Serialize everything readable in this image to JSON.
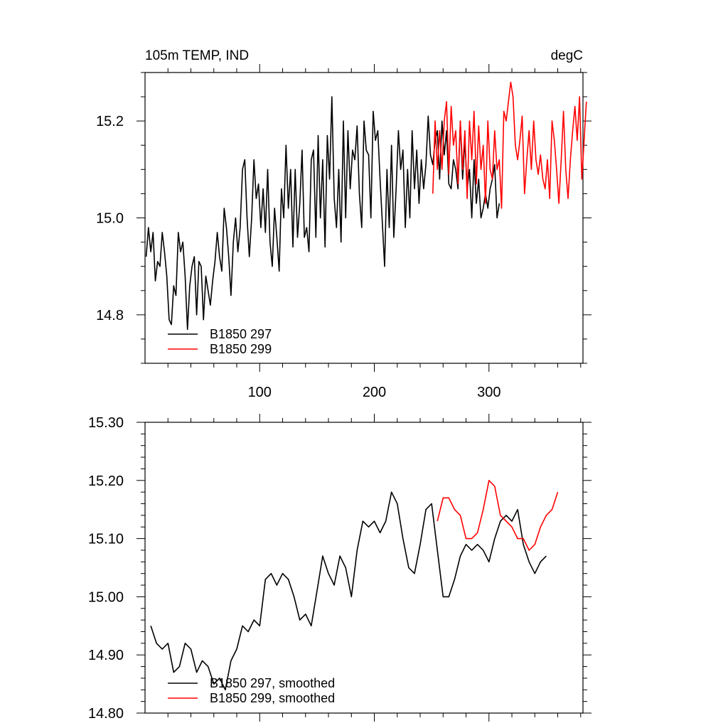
{
  "chart_data": [
    {
      "type": "line",
      "title": "105m TEMP, IND",
      "units": "degC",
      "xlabel": "",
      "ylabel": "",
      "xlim": [
        0,
        382
      ],
      "ylim": [
        14.7,
        15.3
      ],
      "xticks": [
        100,
        200,
        300
      ],
      "xtick_labels": [
        "100",
        "200",
        "300"
      ],
      "yticks": [
        14.8,
        15.0,
        15.2
      ],
      "ytick_labels": [
        "14.8",
        "15.0",
        "15.2"
      ],
      "legend_position": "bottom-left",
      "series": [
        {
          "name": "B1850 297",
          "color": "#000000",
          "x_start": 1,
          "x_step": 2,
          "values": [
            14.92,
            14.98,
            14.93,
            14.97,
            14.87,
            14.91,
            14.9,
            14.97,
            14.93,
            14.88,
            14.79,
            14.78,
            14.86,
            14.84,
            14.97,
            14.93,
            14.95,
            14.88,
            14.77,
            14.86,
            14.9,
            14.92,
            14.8,
            14.91,
            14.9,
            14.79,
            14.88,
            14.85,
            14.82,
            14.87,
            14.91,
            14.97,
            14.92,
            14.89,
            15.02,
            14.98,
            14.92,
            14.84,
            14.95,
            15.0,
            14.93,
            14.98,
            15.1,
            15.12,
            15.0,
            14.92,
            15.0,
            15.12,
            15.04,
            15.07,
            14.98,
            15.06,
            14.97,
            15.1,
            14.95,
            14.9,
            15.02,
            14.96,
            14.89,
            15.06,
            15.0,
            15.15,
            15.02,
            15.1,
            14.94,
            15.1,
            14.96,
            15.03,
            15.14,
            14.96,
            14.98,
            14.93,
            15.12,
            15.14,
            14.96,
            15.17,
            15.0,
            15.12,
            14.94,
            15.17,
            15.08,
            15.25,
            15.04,
            14.98,
            15.1,
            14.95,
            15.2,
            15.0,
            15.18,
            15.06,
            15.14,
            15.12,
            15.19,
            15.05,
            14.98,
            15.2,
            15.14,
            15.13,
            15.0,
            15.22,
            15.16,
            15.18,
            15.08,
            14.99,
            14.9,
            15.1,
            14.98,
            15.15,
            14.96,
            15.06,
            15.18,
            15.1,
            15.14,
            14.98,
            15.1,
            15.0,
            15.18,
            15.06,
            15.14,
            15.03,
            15.12,
            15.06,
            15.11,
            15.21,
            15.13,
            15.11,
            15.16,
            15.18,
            15.08,
            15.2,
            15.13,
            15.18,
            15.07,
            15.06,
            15.12,
            15.1,
            15.06,
            15.2,
            15.08,
            15.16,
            15.06,
            15.1,
            15.0,
            15.12,
            15.03,
            15.08,
            15.0,
            15.02,
            15.05,
            15.02,
            15.06,
            15.08,
            15.11,
            15.0,
            15.03
          ]
        },
        {
          "name": "B1850 299",
          "color": "#ff0000",
          "x_start": 251,
          "x_step": 2,
          "values": [
            15.05,
            15.2,
            15.1,
            15.18,
            15.1,
            15.2,
            15.24,
            15.09,
            15.23,
            15.15,
            15.18,
            15.07,
            15.2,
            15.1,
            15.18,
            15.04,
            15.2,
            15.12,
            15.22,
            15.07,
            15.19,
            15.1,
            15.15,
            15.03,
            15.2,
            15.1,
            15.08,
            15.18,
            15.1,
            15.12,
            15.02,
            15.22,
            15.2,
            15.24,
            15.28,
            15.25,
            15.15,
            15.12,
            15.16,
            15.21,
            15.05,
            15.12,
            15.18,
            15.1,
            15.2,
            15.12,
            15.09,
            15.13,
            15.08,
            15.06,
            15.12,
            15.04,
            15.2,
            15.16,
            15.1,
            15.03,
            15.12,
            15.22,
            15.1,
            15.04,
            15.12,
            15.18,
            15.23,
            15.16,
            15.25,
            15.08,
            15.16,
            15.24
          ]
        }
      ]
    },
    {
      "type": "line",
      "title": "",
      "xlabel": "",
      "ylabel": "",
      "xlim": [
        0,
        382
      ],
      "ylim": [
        14.8,
        15.3
      ],
      "xticks": [
        100,
        200,
        300
      ],
      "xtick_labels": [],
      "yticks": [
        14.8,
        14.9,
        15.0,
        15.1,
        15.2,
        15.3
      ],
      "ytick_labels": [
        "14.80",
        "14.90",
        "15.00",
        "15.10",
        "15.20",
        "15.30"
      ],
      "legend_position": "bottom-left",
      "series": [
        {
          "name": "B1850 297, smoothed",
          "color": "#000000",
          "x_start": 5,
          "x_step": 5,
          "values": [
            14.95,
            14.92,
            14.91,
            14.92,
            14.87,
            14.88,
            14.92,
            14.91,
            14.87,
            14.89,
            14.88,
            14.85,
            14.86,
            14.84,
            14.89,
            14.91,
            14.95,
            14.94,
            14.96,
            14.95,
            15.03,
            15.04,
            15.02,
            15.04,
            15.03,
            15.0,
            14.96,
            14.97,
            14.95,
            15.01,
            15.07,
            15.04,
            15.02,
            15.07,
            15.05,
            15.0,
            15.08,
            15.13,
            15.12,
            15.13,
            15.11,
            15.13,
            15.18,
            15.16,
            15.1,
            15.05,
            15.04,
            15.09,
            15.15,
            15.16,
            15.08,
            15.0,
            15.0,
            15.03,
            15.07,
            15.09,
            15.08,
            15.09,
            15.08,
            15.06,
            15.1,
            15.13,
            15.14,
            15.13,
            15.15,
            15.09,
            15.06,
            15.04,
            15.06,
            15.07
          ]
        },
        {
          "name": "B1850 299, smoothed",
          "color": "#ff0000",
          "x_start": 255,
          "x_step": 5,
          "values": [
            15.13,
            15.17,
            15.17,
            15.15,
            15.14,
            15.1,
            15.1,
            15.11,
            15.15,
            15.2,
            15.19,
            15.14,
            15.13,
            15.12,
            15.1,
            15.1,
            15.08,
            15.09,
            15.12,
            15.14,
            15.15,
            15.18
          ]
        }
      ]
    }
  ]
}
